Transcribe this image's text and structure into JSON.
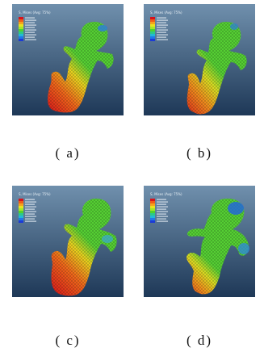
{
  "figure": {
    "panels": [
      {
        "id": "a",
        "caption": "( a)",
        "legend_header": "S, Mises (Avg: 75%)",
        "stress_profile": "base-high"
      },
      {
        "id": "b",
        "caption": "( b)",
        "legend_header": "S, Mises (Avg: 75%)",
        "stress_profile": "base-medium"
      },
      {
        "id": "c",
        "caption": "( c)",
        "legend_header": "S, Mises (Avg: 75%)",
        "stress_profile": "body-high"
      },
      {
        "id": "d",
        "caption": "( d)",
        "legend_header": "S, Mises (Avg: 75%)",
        "stress_profile": "base-low"
      }
    ],
    "colormap": [
      "#d8121a",
      "#ef5d16",
      "#f4a21c",
      "#e9e21e",
      "#a6e626",
      "#4fd22d",
      "#2bc98a",
      "#22b8d6",
      "#2079e8",
      "#1c3bd6"
    ],
    "background": [
      "#6c89a6",
      "#1f3b59"
    ],
    "mesh_color": "#58cc3a"
  }
}
